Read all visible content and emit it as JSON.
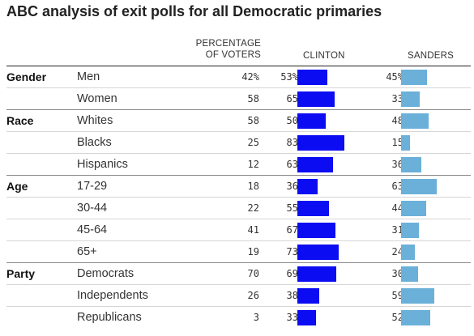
{
  "title": "ABC analysis of exit polls for all Democratic primaries",
  "columns": {
    "voters_line1": "PERCENTAGE",
    "voters_line2": "OF VOTERS",
    "clinton": "CLINTON",
    "sanders": "SANDERS"
  },
  "colors": {
    "clinton": "#0c0cf2",
    "sanders": "#6ab0d9"
  },
  "chart_data": {
    "type": "table",
    "title": "ABC analysis of exit polls for all Democratic primaries",
    "columns": [
      "PERCENTAGE OF VOTERS",
      "CLINTON",
      "SANDERS"
    ],
    "bar_scale_max": 100,
    "rows": [
      {
        "group": "Gender",
        "category": "Men",
        "voters": "42%",
        "clinton": "53%",
        "sanders": "45%",
        "clinton_value": 53,
        "sanders_value": 45
      },
      {
        "group": "",
        "category": "Women",
        "voters": "58",
        "clinton": "65",
        "sanders": "33",
        "clinton_value": 65,
        "sanders_value": 33
      },
      {
        "group": "Race",
        "category": "Whites",
        "voters": "58",
        "clinton": "50",
        "sanders": "48",
        "clinton_value": 50,
        "sanders_value": 48
      },
      {
        "group": "",
        "category": "Blacks",
        "voters": "25",
        "clinton": "83",
        "sanders": "15",
        "clinton_value": 83,
        "sanders_value": 15
      },
      {
        "group": "",
        "category": "Hispanics",
        "voters": "12",
        "clinton": "63",
        "sanders": "36",
        "clinton_value": 63,
        "sanders_value": 36
      },
      {
        "group": "Age",
        "category": "17-29",
        "voters": "18",
        "clinton": "36",
        "sanders": "63",
        "clinton_value": 36,
        "sanders_value": 63
      },
      {
        "group": "",
        "category": "30-44",
        "voters": "22",
        "clinton": "55",
        "sanders": "44",
        "clinton_value": 55,
        "sanders_value": 44
      },
      {
        "group": "",
        "category": "45-64",
        "voters": "41",
        "clinton": "67",
        "sanders": "31",
        "clinton_value": 67,
        "sanders_value": 31
      },
      {
        "group": "",
        "category": "65+",
        "voters": "19",
        "clinton": "73",
        "sanders": "24",
        "clinton_value": 73,
        "sanders_value": 24
      },
      {
        "group": "Party",
        "category": "Democrats",
        "voters": "70",
        "clinton": "69",
        "sanders": "30",
        "clinton_value": 69,
        "sanders_value": 30
      },
      {
        "group": "",
        "category": "Independents",
        "voters": "26",
        "clinton": "38",
        "sanders": "59",
        "clinton_value": 38,
        "sanders_value": 59
      },
      {
        "group": "",
        "category": "Republicans",
        "voters": "3",
        "clinton": "33",
        "sanders": "52",
        "clinton_value": 33,
        "sanders_value": 52
      }
    ]
  }
}
